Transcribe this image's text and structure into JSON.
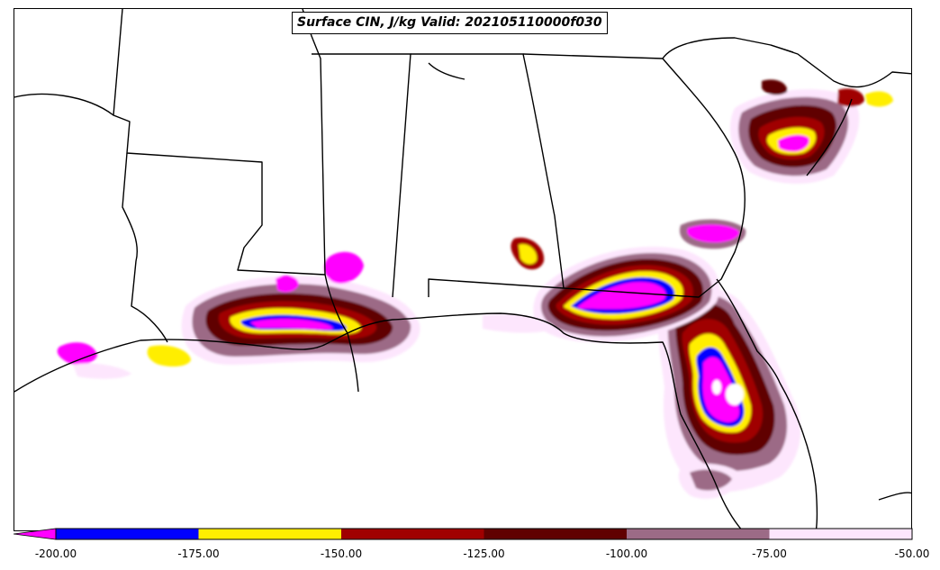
{
  "title": "Surface CIN, J/kg Valid: 202105110000f030",
  "colorbar": {
    "extend": "min",
    "bins": [
      {
        "from": -200,
        "to": -175,
        "color": "#0000ff"
      },
      {
        "from": -175,
        "to": -150,
        "color": "#ffee00"
      },
      {
        "from": -150,
        "to": -125,
        "color": "#a00000"
      },
      {
        "from": -125,
        "to": -100,
        "color": "#600000"
      },
      {
        "from": -100,
        "to": -75,
        "color": "#9c6b86"
      },
      {
        "from": -75,
        "to": -50,
        "color": "#fde6fd"
      }
    ],
    "below_min_color": "#ff00ff",
    "ticks": [
      "-200.00",
      "-175.00",
      "-150.00",
      "-125.00",
      "-100.00",
      "-75.00",
      "-50.00"
    ]
  },
  "map": {
    "region": "US Gulf Coast and Southeast",
    "background": "#ffffff",
    "boundary_color": "#000000"
  }
}
